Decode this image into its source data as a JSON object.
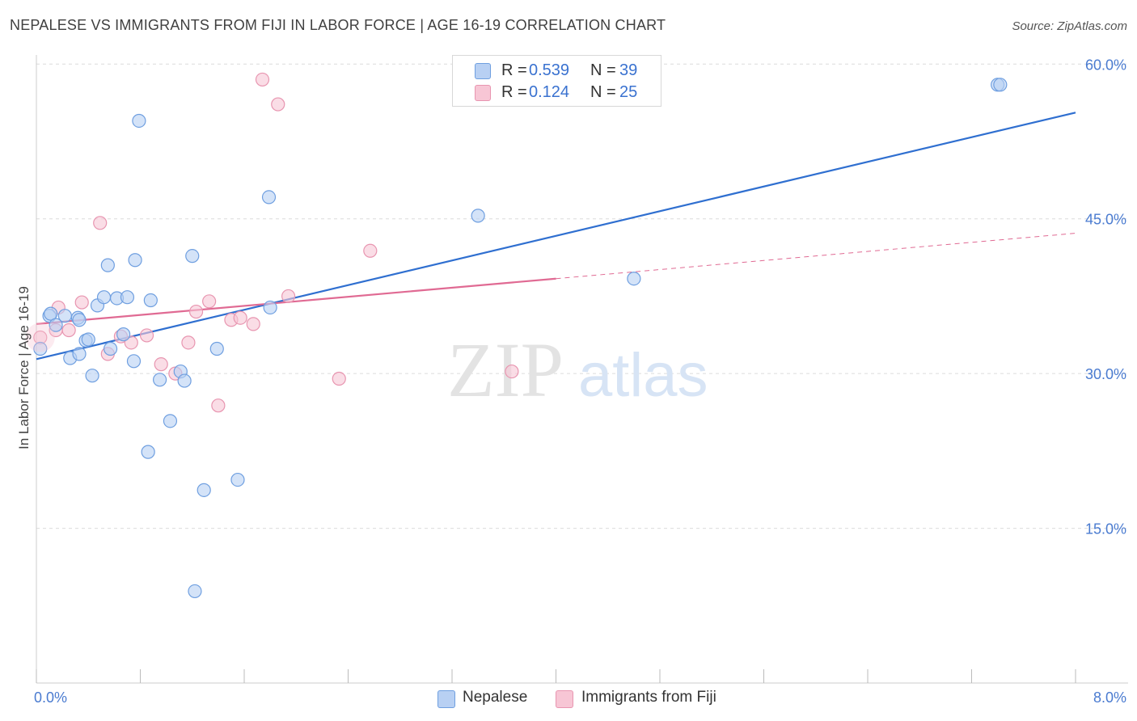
{
  "title": "NEPALESE VS IMMIGRANTS FROM FIJI IN LABOR FORCE | AGE 16-19 CORRELATION CHART",
  "source": "Source: ZipAtlas.com",
  "watermark": {
    "zip": "ZIP",
    "atlas": "atlas"
  },
  "legend": {
    "series1": {
      "r_label": "R =",
      "r_value": "0.539",
      "n_label": "N =",
      "n_value": "39"
    },
    "series2": {
      "r_label": "R =",
      "r_value": "0.124",
      "n_label": "N =",
      "n_value": "25"
    }
  },
  "bottom_legend": {
    "series1": "Nepalese",
    "series2": "Immigrants from Fiji"
  },
  "colors": {
    "nepalese_fill": "#b8d0f3",
    "nepalese_stroke": "#6f9fe0",
    "nepalese_line": "#2f6fd0",
    "fiji_fill": "#f7c6d5",
    "fiji_stroke": "#e895b0",
    "fiji_line": "#e06a93",
    "tick_text": "#4a7bd0",
    "grid": "#dcdcdc"
  },
  "chart_data": {
    "type": "scatter",
    "title": "NEPALESE VS IMMIGRANTS FROM FIJI IN LABOR FORCE | AGE 16-19 CORRELATION CHART",
    "xlabel": "",
    "ylabel": "In Labor Force | Age 16-19",
    "xlim": [
      0,
      8
    ],
    "ylim": [
      0,
      60
    ],
    "x_tick_labels": [
      "0.0%",
      "8.0%"
    ],
    "y_ticks": [
      15,
      30,
      45,
      60
    ],
    "y_tick_labels": [
      "15.0%",
      "30.0%",
      "45.0%",
      "60.0%"
    ],
    "grid": true,
    "series": [
      {
        "name": "Nepalese",
        "points": [
          [
            0.03,
            32.4
          ],
          [
            0.1,
            35.6
          ],
          [
            0.11,
            35.8
          ],
          [
            0.15,
            34.7
          ],
          [
            0.22,
            35.6
          ],
          [
            0.26,
            31.5
          ],
          [
            0.32,
            35.4
          ],
          [
            0.33,
            35.2
          ],
          [
            0.33,
            31.9
          ],
          [
            0.38,
            33.2
          ],
          [
            0.4,
            33.3
          ],
          [
            0.43,
            29.8
          ],
          [
            0.47,
            36.6
          ],
          [
            0.52,
            37.4
          ],
          [
            0.55,
            40.5
          ],
          [
            0.57,
            32.4
          ],
          [
            0.62,
            37.3
          ],
          [
            0.67,
            33.8
          ],
          [
            0.7,
            37.4
          ],
          [
            0.75,
            31.2
          ],
          [
            0.76,
            41.0
          ],
          [
            0.79,
            54.5
          ],
          [
            0.86,
            22.4
          ],
          [
            0.88,
            37.1
          ],
          [
            0.95,
            29.4
          ],
          [
            1.03,
            25.4
          ],
          [
            1.11,
            30.2
          ],
          [
            1.14,
            29.3
          ],
          [
            1.2,
            41.4
          ],
          [
            1.22,
            8.9
          ],
          [
            1.29,
            18.7
          ],
          [
            1.39,
            32.4
          ],
          [
            1.55,
            19.7
          ],
          [
            1.79,
            47.1
          ],
          [
            1.8,
            36.4
          ],
          [
            3.4,
            45.3
          ],
          [
            4.6,
            39.2
          ],
          [
            7.4,
            58.0
          ],
          [
            7.42,
            58.0
          ]
        ],
        "trend": {
          "x": [
            0.0,
            8.0
          ],
          "y": [
            31.4,
            55.3
          ]
        }
      },
      {
        "name": "Immigrants from Fiji",
        "points": [
          [
            0.03,
            33.5
          ],
          [
            0.15,
            34.2
          ],
          [
            0.17,
            36.4
          ],
          [
            0.25,
            34.2
          ],
          [
            0.35,
            36.9
          ],
          [
            0.49,
            44.6
          ],
          [
            0.55,
            31.9
          ],
          [
            0.65,
            33.6
          ],
          [
            0.73,
            33.0
          ],
          [
            0.85,
            33.7
          ],
          [
            0.96,
            30.9
          ],
          [
            1.07,
            30.0
          ],
          [
            1.17,
            33.0
          ],
          [
            1.23,
            36.0
          ],
          [
            1.33,
            37.0
          ],
          [
            1.5,
            35.2
          ],
          [
            1.57,
            35.4
          ],
          [
            1.67,
            34.8
          ],
          [
            1.74,
            58.5
          ],
          [
            1.86,
            56.1
          ],
          [
            1.94,
            37.5
          ],
          [
            2.33,
            29.5
          ],
          [
            2.57,
            41.9
          ],
          [
            3.66,
            30.2
          ],
          [
            1.4,
            26.9
          ]
        ],
        "trend": {
          "x": [
            0.0,
            8.0
          ],
          "y": [
            34.8,
            43.6
          ]
        },
        "trend_solid_until_x": 4.0
      }
    ]
  }
}
